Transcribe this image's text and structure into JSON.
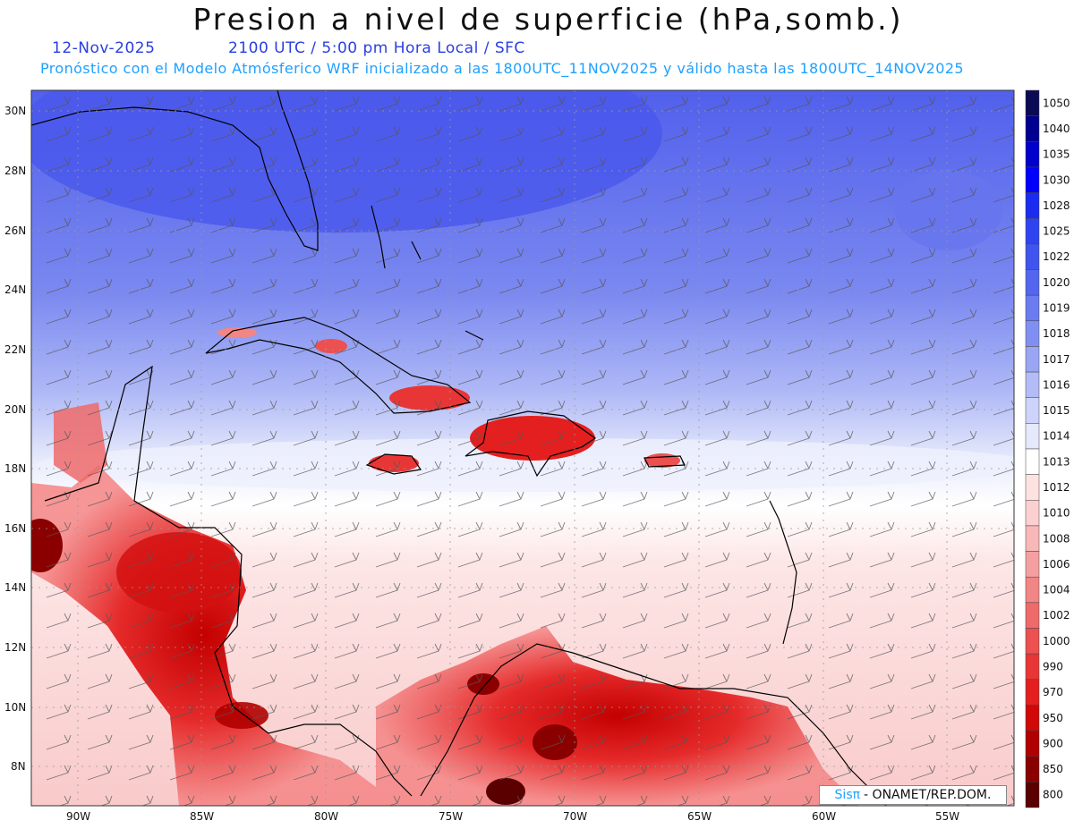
{
  "title": "Presion a nivel de superficie (hPa,somb.)",
  "date": "12-Nov-2025",
  "time_info": "2100 UTC / 5:00 pm Hora Local / SFC",
  "forecast_info": "Pronóstico con el Modelo Atmósferico WRF inicializado a las 1800UTC_11NOV2025 y válido hasta las  1800UTC_14NOV2025",
  "credit": {
    "logo": "Sisπ",
    "text": "- ONAMET/REP.DOM."
  },
  "lat_labels": [
    "30N",
    "28N",
    "26N",
    "24N",
    "22N",
    "20N",
    "18N",
    "16N",
    "14N",
    "12N",
    "10N",
    "8N"
  ],
  "lon_labels": [
    "90W",
    "85W",
    "80W",
    "75W",
    "70W",
    "65W",
    "60W",
    "55W"
  ],
  "colorbar": {
    "levels": [
      "1050",
      "1040",
      "1035",
      "1030",
      "1028",
      "1025",
      "1022",
      "1020",
      "1019",
      "1018",
      "1017",
      "1016",
      "1015",
      "1014",
      "1013",
      "1012",
      "1010",
      "1008",
      "1006",
      "1004",
      "1002",
      "1000",
      "990",
      "970",
      "950",
      "900",
      "850",
      "800"
    ],
    "colors": [
      "#0a0a55",
      "#000090",
      "#0000cc",
      "#0000ff",
      "#1a2cf0",
      "#2f44f0",
      "#4055ee",
      "#5566ee",
      "#6b7bf0",
      "#8090f2",
      "#9aa6f4",
      "#b3bcf7",
      "#cdd3fa",
      "#e6e9fc",
      "#ffffff",
      "#fde2e2",
      "#fbd0d0",
      "#f8b8b8",
      "#f5a0a0",
      "#f28585",
      "#ef6a6a",
      "#ec5050",
      "#e83636",
      "#e41f1f",
      "#d00808",
      "#b00000",
      "#8a0000",
      "#5a0000"
    ]
  },
  "colors": {
    "title_date": "#2a3fe0",
    "forecast_text": "#1fa0ff"
  }
}
